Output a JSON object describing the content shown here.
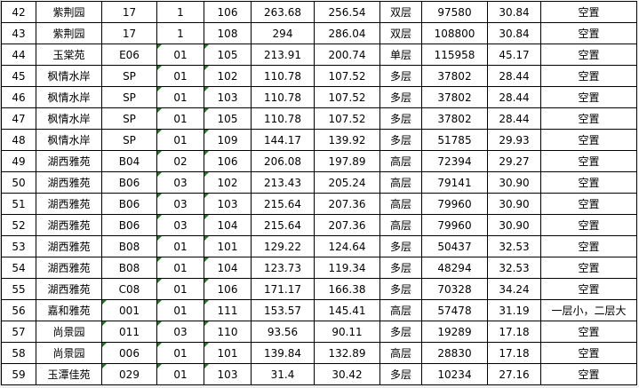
{
  "rows": [
    {
      "no": "42",
      "name": "紫荆园",
      "bldg": "17",
      "unit": "1",
      "room": "106",
      "area": "263.68",
      "inner": "256.54",
      "type": "双层",
      "price": "97580",
      "ratio": "30.84",
      "note": "空置"
    },
    {
      "no": "43",
      "name": "紫荆园",
      "bldg": "17",
      "unit": "1",
      "room": "108",
      "area": "294",
      "inner": "286.04",
      "type": "双层",
      "price": "108800",
      "ratio": "30.84",
      "note": "空置"
    },
    {
      "no": "44",
      "name": "玉棠苑",
      "bldg": "E06",
      "unit": "01",
      "room": "105",
      "area": "213.91",
      "inner": "200.74",
      "type": "单层",
      "price": "115958",
      "ratio": "45.17",
      "note": "空置"
    },
    {
      "no": "45",
      "name": "枫情水岸",
      "bldg": "SP",
      "unit": "01",
      "room": "102",
      "area": "110.78",
      "inner": "107.52",
      "type": "多层",
      "price": "37802",
      "ratio": "28.44",
      "note": "空置"
    },
    {
      "no": "46",
      "name": "枫情水岸",
      "bldg": "SP",
      "unit": "01",
      "room": "103",
      "area": "110.78",
      "inner": "107.52",
      "type": "多层",
      "price": "37802",
      "ratio": "28.44",
      "note": "空置"
    },
    {
      "no": "47",
      "name": "枫情水岸",
      "bldg": "SP",
      "unit": "01",
      "room": "105",
      "area": "110.78",
      "inner": "107.52",
      "type": "多层",
      "price": "37802",
      "ratio": "28.44",
      "note": "空置"
    },
    {
      "no": "48",
      "name": "枫情水岸",
      "bldg": "SP",
      "unit": "01",
      "room": "109",
      "area": "144.17",
      "inner": "139.92",
      "type": "多层",
      "price": "51785",
      "ratio": "29.93",
      "note": "空置"
    },
    {
      "no": "49",
      "name": "湖西雅苑",
      "bldg": "B04",
      "unit": "02",
      "room": "106",
      "area": "206.08",
      "inner": "197.89",
      "type": "高层",
      "price": "72394",
      "ratio": "29.27",
      "note": "空置"
    },
    {
      "no": "50",
      "name": "湖西雅苑",
      "bldg": "B06",
      "unit": "03",
      "room": "102",
      "area": "213.43",
      "inner": "205.24",
      "type": "高层",
      "price": "79141",
      "ratio": "30.90",
      "note": "空置"
    },
    {
      "no": "51",
      "name": "湖西雅苑",
      "bldg": "B06",
      "unit": "03",
      "room": "103",
      "area": "215.64",
      "inner": "207.36",
      "type": "高层",
      "price": "79960",
      "ratio": "30.90",
      "note": "空置"
    },
    {
      "no": "52",
      "name": "湖西雅苑",
      "bldg": "B06",
      "unit": "03",
      "room": "104",
      "area": "215.64",
      "inner": "207.36",
      "type": "高层",
      "price": "79960",
      "ratio": "30.90",
      "note": "空置"
    },
    {
      "no": "53",
      "name": "湖西雅苑",
      "bldg": "B08",
      "unit": "01",
      "room": "101",
      "area": "129.22",
      "inner": "124.64",
      "type": "多层",
      "price": "50437",
      "ratio": "32.53",
      "note": "空置"
    },
    {
      "no": "54",
      "name": "湖西雅苑",
      "bldg": "B08",
      "unit": "01",
      "room": "104",
      "area": "123.73",
      "inner": "119.34",
      "type": "多层",
      "price": "48294",
      "ratio": "32.53",
      "note": "空置"
    },
    {
      "no": "55",
      "name": "湖西雅苑",
      "bldg": "C08",
      "unit": "01",
      "room": "106",
      "area": "171.17",
      "inner": "166.38",
      "type": "多层",
      "price": "70328",
      "ratio": "34.24",
      "note": "空置"
    },
    {
      "no": "56",
      "name": "嘉和雅苑",
      "bldg": "001",
      "unit": "01",
      "room": "111",
      "area": "153.57",
      "inner": "145.41",
      "type": "高层",
      "price": "57478",
      "ratio": "31.19",
      "note": "一层小，二层大"
    },
    {
      "no": "57",
      "name": "尚景园",
      "bldg": "011",
      "unit": "03",
      "room": "110",
      "area": "93.56",
      "inner": "90.11",
      "type": "多层",
      "price": "19289",
      "ratio": "17.18",
      "note": "空置"
    },
    {
      "no": "58",
      "name": "尚景园",
      "bldg": "006",
      "unit": "01",
      "room": "101",
      "area": "139.84",
      "inner": "132.89",
      "type": "高层",
      "price": "28830",
      "ratio": "17.18",
      "note": "空置"
    },
    {
      "no": "59",
      "name": "玉潭佳苑",
      "bldg": "029",
      "unit": "01",
      "room": "103",
      "area": "31.4",
      "inner": "30.42",
      "type": "多层",
      "price": "10234",
      "ratio": "27.16",
      "note": "空置"
    }
  ],
  "colors": {
    "grid": "#000000",
    "text_marker": "#1f7a1f"
  }
}
